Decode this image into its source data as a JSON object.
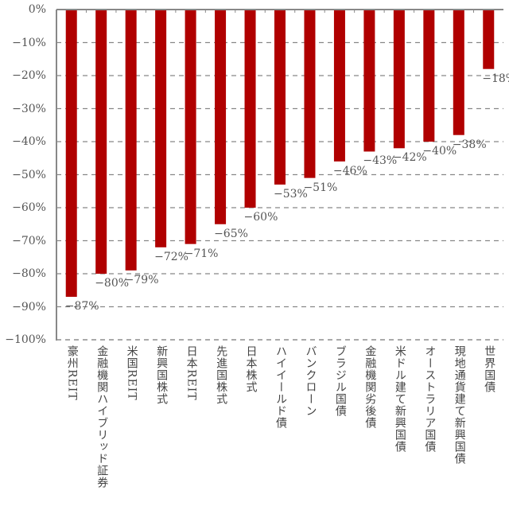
{
  "chart_data": {
    "type": "bar",
    "title": "",
    "xlabel": "",
    "ylabel": "",
    "ylim": [
      -100,
      0
    ],
    "grid": true,
    "grid_style": "dashed horizontal",
    "bar_color": "#b00000",
    "yticks": [
      "0%",
      "-10%",
      "-20%",
      "-30%",
      "-40%",
      "-50%",
      "-60%",
      "-70%",
      "-80%",
      "-90%",
      "-100%"
    ],
    "ytick_values": [
      0,
      -10,
      -20,
      -30,
      -40,
      -50,
      -60,
      -70,
      -80,
      -90,
      -100
    ],
    "categories": [
      "豪州REIT",
      "金融機関ハイブリッド証券",
      "米国REIT",
      "新興国株式",
      "日本REIT",
      "先進国株式",
      "日本株式",
      "ハイイールド債",
      "バンクローン",
      "ブラジル国債",
      "金融機関劣後債",
      "米ドル建て新興国債",
      "オーストラリア国債",
      "現地通貨建て新興国債",
      "世界国債"
    ],
    "values": [
      -87,
      -80,
      -79,
      -72,
      -71,
      -65,
      -60,
      -53,
      -51,
      -46,
      -43,
      -42,
      -40,
      -38,
      -18
    ],
    "data_labels": [
      "-87%",
      "-80%",
      "-79%",
      "-72%",
      "-71%",
      "-65%",
      "-60%",
      "-53%",
      "-51%",
      "-46%",
      "-43%",
      "-42%",
      "-40%",
      "-38%",
      "-18%"
    ]
  }
}
